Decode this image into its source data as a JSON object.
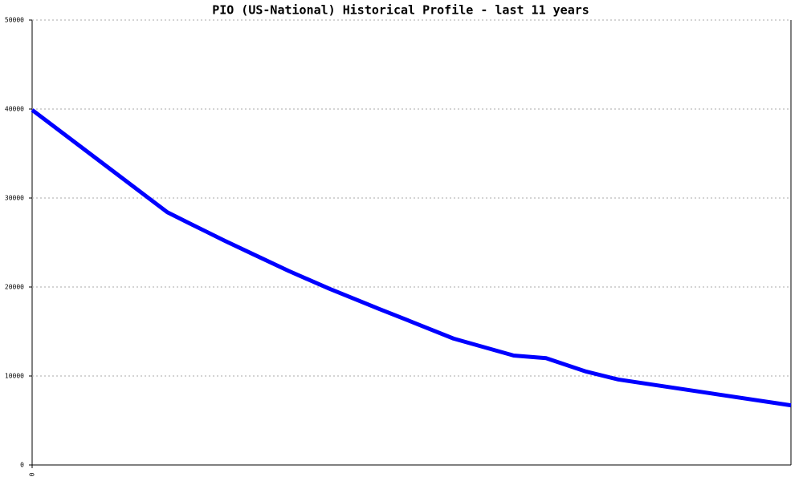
{
  "chart_data": {
    "type": "line",
    "title": "PIO (US-National) Historical Profile - last 11 years",
    "x": [
      0,
      1.96,
      2.27,
      2.79,
      3.2,
      3.72,
      4.31,
      5.01,
      5.53,
      6.11,
      6.98,
      7.45,
      8.03,
      8.5,
      11
    ],
    "series": [
      {
        "color": "#0000ff",
        "values": [
          39900,
          28400,
          27200,
          25200,
          23700,
          21800,
          19800,
          17600,
          16000,
          14200,
          12300,
          12000,
          10500,
          9600,
          6700
        ]
      }
    ],
    "xlim": [
      0,
      11
    ],
    "xticks": [
      0
    ],
    "ylim": [
      0,
      50000
    ],
    "yticks": [
      0,
      10000,
      20000,
      30000,
      40000,
      50000
    ],
    "grid": true
  }
}
